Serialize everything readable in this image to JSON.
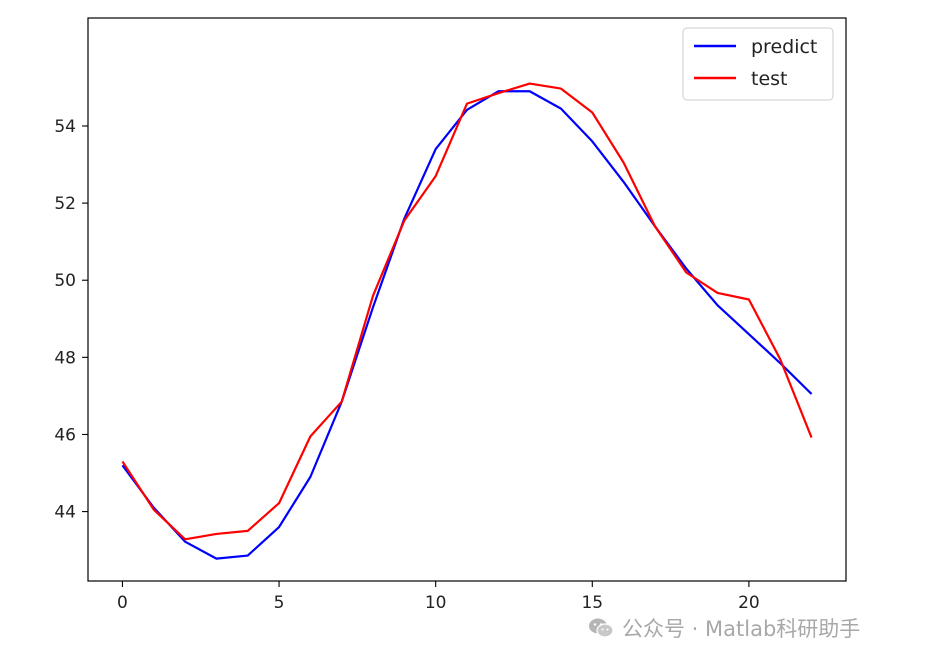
{
  "chart_data": {
    "type": "line",
    "x": [
      0,
      1,
      2,
      3,
      4,
      5,
      6,
      7,
      8,
      9,
      10,
      11,
      12,
      13,
      14,
      15,
      16,
      17,
      18,
      19,
      20,
      21,
      22
    ],
    "series": [
      {
        "name": "predict",
        "color": "#0000ff",
        "values": [
          45.2,
          44.1,
          43.22,
          42.78,
          42.86,
          43.6,
          44.9,
          46.85,
          49.3,
          51.6,
          53.4,
          54.42,
          54.9,
          54.9,
          54.45,
          53.6,
          52.55,
          51.4,
          50.3,
          49.35,
          48.6,
          47.85,
          47.05
        ]
      },
      {
        "name": "test",
        "color": "#ff0000",
        "values": [
          45.3,
          44.05,
          43.28,
          43.42,
          43.5,
          44.22,
          45.95,
          46.85,
          49.6,
          51.55,
          52.7,
          54.58,
          54.85,
          55.1,
          54.97,
          54.35,
          53.05,
          51.4,
          50.2,
          49.67,
          49.5,
          47.95,
          45.92
        ]
      }
    ],
    "xlim": [
      -1.1,
      23.1
    ],
    "ylim": [
      42.2,
      56.8
    ],
    "x_ticks": [
      0,
      5,
      10,
      15,
      20
    ],
    "y_ticks": [
      44,
      46,
      48,
      50,
      52,
      54
    ],
    "grid": false,
    "legend_position": "upper-right"
  },
  "watermark": {
    "icon": "wechat-icon",
    "text": "公众号 · Matlab科研助手"
  }
}
